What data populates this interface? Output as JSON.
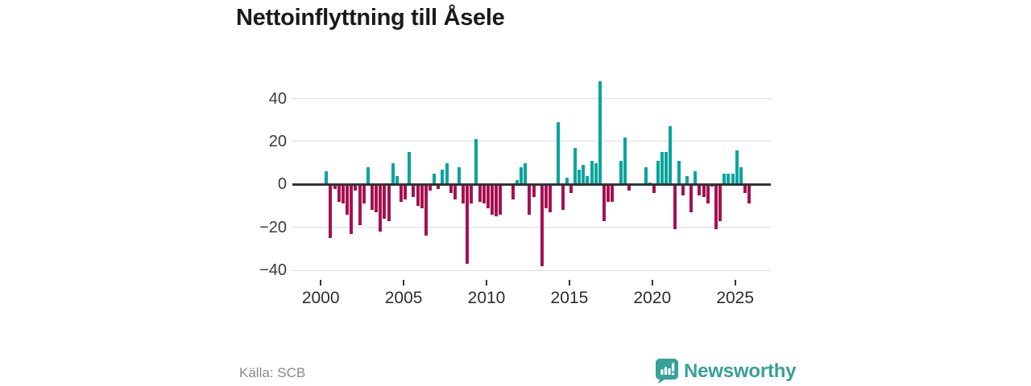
{
  "title": "Nettoinflyttning till Åsele",
  "source": "Källa: SCB",
  "brand": {
    "name": "Newsworthy",
    "icon": "newsworthy-badge-icon",
    "color": "#35a198"
  },
  "colors": {
    "positive_bar": "#00a59b",
    "negative_bar": "#a61150",
    "grid": "#dcdcdc",
    "zero_line": "#333333",
    "title_text": "#1a1a1a",
    "axis_text": "#3a3a3a",
    "muted_text": "#8a8a8a"
  },
  "chart_data": {
    "type": "bar",
    "title": "Nettoinflyttning till Åsele",
    "xlabel": "",
    "ylabel": "",
    "x_unit": "quarter",
    "period": "2000Q1–2025Q4",
    "ylim": [
      -40,
      48
    ],
    "grid": "horizontal",
    "legend": "none",
    "y_ticks": [
      {
        "label": "40",
        "value": 40
      },
      {
        "label": "20",
        "value": 20
      },
      {
        "label": "0",
        "value": 0
      },
      {
        "label": "−20",
        "value": -20
      },
      {
        "label": "−40",
        "value": -40
      }
    ],
    "x_ticks": [
      {
        "label": "2000",
        "year": 2000
      },
      {
        "label": "2005",
        "year": 2005
      },
      {
        "label": "2010",
        "year": 2010
      },
      {
        "label": "2015",
        "year": 2015
      },
      {
        "label": "2020",
        "year": 2020
      },
      {
        "label": "2025",
        "year": 2025
      }
    ],
    "values_by_year": [
      {
        "year": 2000,
        "values": [
          0,
          6,
          -25,
          -2
        ]
      },
      {
        "year": 2001,
        "values": [
          -8,
          -9,
          -14,
          -23
        ]
      },
      {
        "year": 2002,
        "values": [
          -3,
          -19,
          -9,
          8
        ]
      },
      {
        "year": 2003,
        "values": [
          -12,
          -13,
          -22,
          -16
        ]
      },
      {
        "year": 2004,
        "values": [
          -17,
          10,
          4,
          -8
        ]
      },
      {
        "year": 2005,
        "values": [
          -7,
          15,
          -6,
          -10
        ]
      },
      {
        "year": 2006,
        "values": [
          -11,
          -24,
          -3,
          5
        ]
      },
      {
        "year": 2007,
        "values": [
          -2,
          7,
          10,
          -4
        ]
      },
      {
        "year": 2008,
        "values": [
          -7,
          8,
          -9,
          -37
        ]
      },
      {
        "year": 2009,
        "values": [
          -9,
          21,
          -8,
          -9
        ]
      },
      {
        "year": 2010,
        "values": [
          -11,
          -14,
          -15,
          -14
        ]
      },
      {
        "year": 2011,
        "values": [
          0,
          0,
          -7,
          2
        ]
      },
      {
        "year": 2012,
        "values": [
          8,
          10,
          -14,
          -6
        ]
      },
      {
        "year": 2013,
        "values": [
          0,
          -38,
          -11,
          -13
        ]
      },
      {
        "year": 2014,
        "values": [
          0,
          29,
          -12,
          3
        ]
      },
      {
        "year": 2015,
        "values": [
          -4,
          17,
          7,
          9
        ]
      },
      {
        "year": 2016,
        "values": [
          4,
          11,
          10,
          48
        ]
      },
      {
        "year": 2017,
        "values": [
          -17,
          -8,
          -8,
          0
        ]
      },
      {
        "year": 2018,
        "values": [
          11,
          22,
          -3,
          0
        ]
      },
      {
        "year": 2019,
        "values": [
          0,
          0,
          8,
          1
        ]
      },
      {
        "year": 2020,
        "values": [
          -4,
          11,
          15,
          15
        ]
      },
      {
        "year": 2021,
        "values": [
          27,
          -21,
          11,
          -5
        ]
      },
      {
        "year": 2022,
        "values": [
          4,
          -13,
          6,
          -5
        ]
      },
      {
        "year": 2023,
        "values": [
          -6,
          -9,
          -1,
          -21
        ]
      },
      {
        "year": 2024,
        "values": [
          -17,
          5,
          5,
          5
        ]
      },
      {
        "year": 2025,
        "values": [
          16,
          8,
          -4,
          -9
        ]
      }
    ]
  }
}
